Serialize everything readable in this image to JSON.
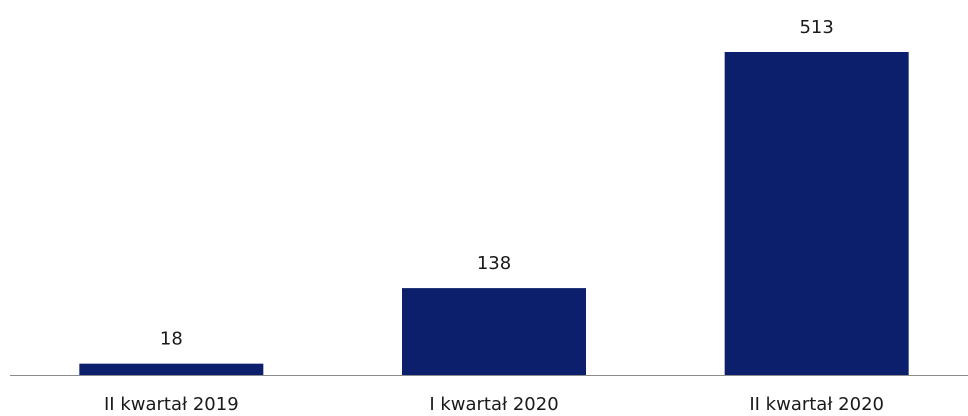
{
  "chart_data": {
    "type": "bar",
    "categories": [
      "II kwartał 2019",
      "I kwartał 2020",
      "II kwartał 2020"
    ],
    "values": [
      18,
      138,
      513
    ],
    "color": "#0c1f6c"
  }
}
